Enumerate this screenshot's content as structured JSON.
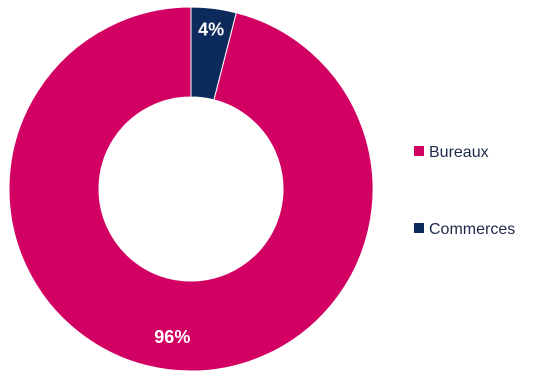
{
  "chart_data": {
    "type": "pie",
    "donut": true,
    "categories": [
      "Bureaux",
      "Commerces"
    ],
    "values": [
      96,
      4
    ],
    "labels": [
      "96%",
      "4%"
    ],
    "colors": [
      "#d30063",
      "#0d2a5c"
    ],
    "legend_position": "right"
  }
}
